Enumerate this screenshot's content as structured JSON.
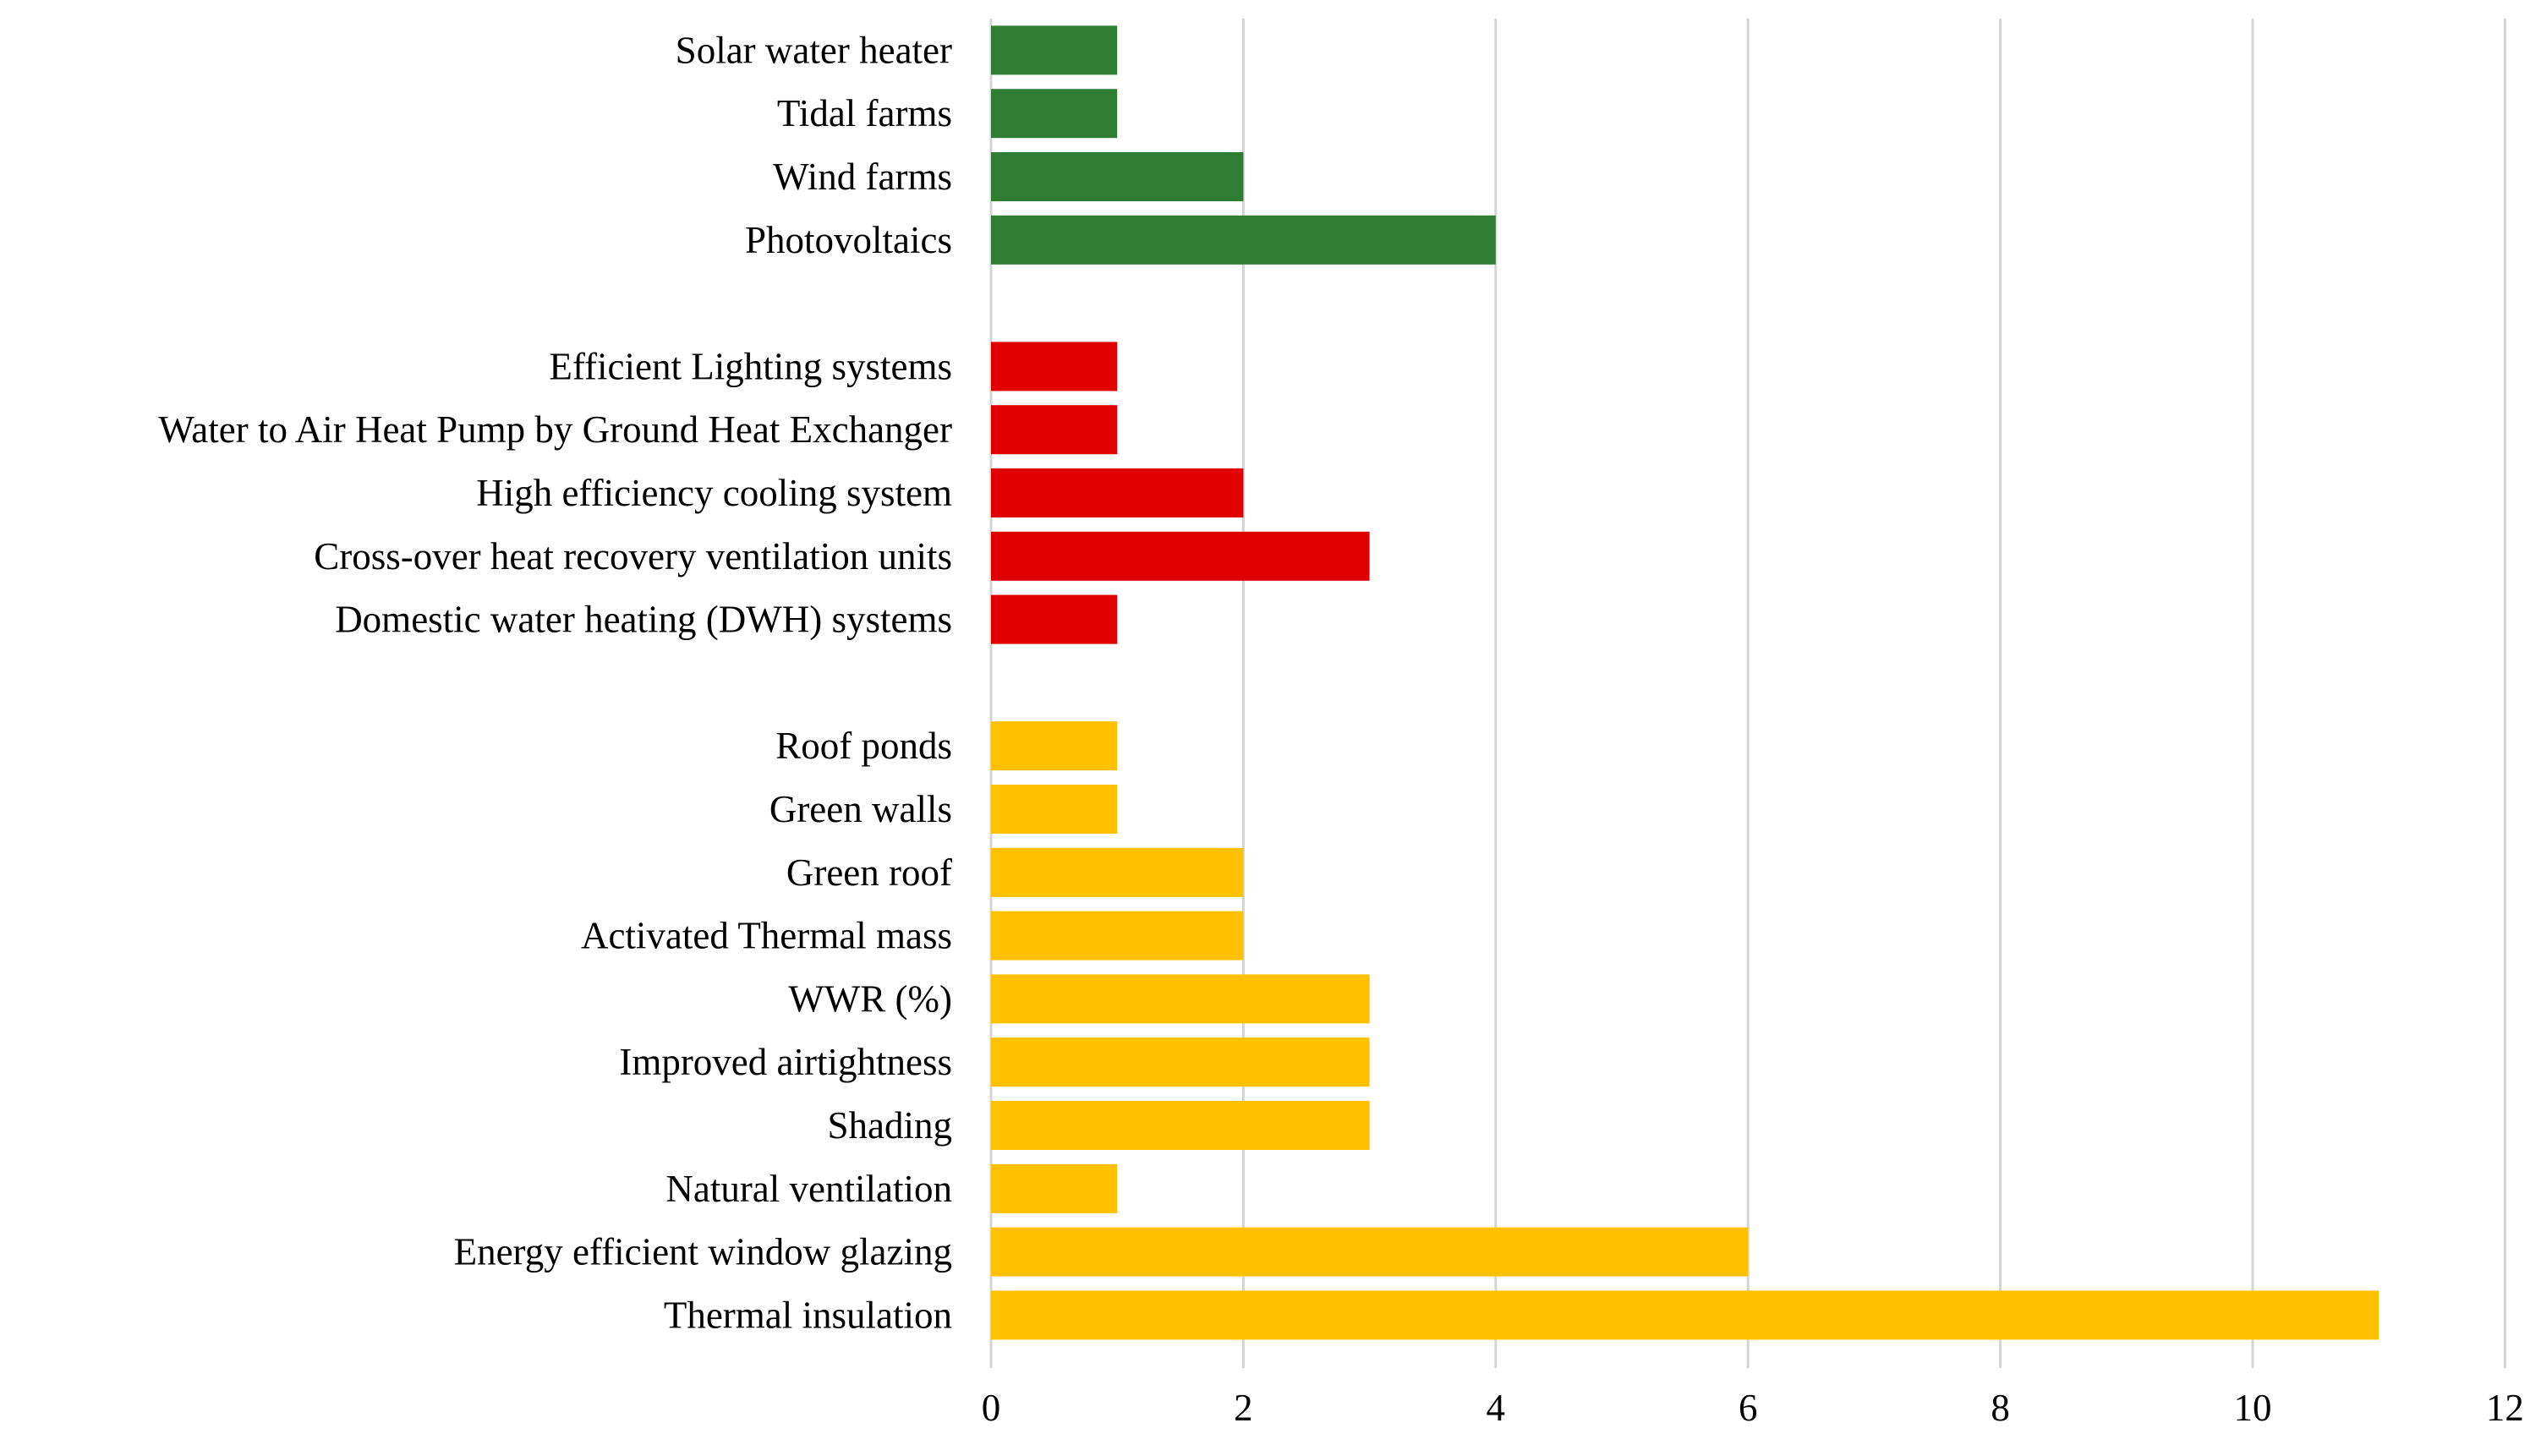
{
  "chart_data": {
    "type": "bar",
    "orientation": "horizontal",
    "title": "",
    "xlabel": "",
    "ylabel": "",
    "xlim": [
      0,
      12
    ],
    "x_ticks": [
      0,
      2,
      4,
      6,
      8,
      10,
      12
    ],
    "grid": "vertical",
    "legend": "none",
    "colors": {
      "renewable": "#2e7d32",
      "systems": "#e00000",
      "passive": "#ffc000"
    },
    "groups": [
      {
        "color_key": "renewable",
        "items": [
          {
            "label": "Solar water heater",
            "value": 1
          },
          {
            "label": "Tidal farms",
            "value": 1
          },
          {
            "label": "Wind farms",
            "value": 2
          },
          {
            "label": "Photovoltaics",
            "value": 4
          }
        ]
      },
      {
        "color_key": "systems",
        "items": [
          {
            "label": "Efficient Lighting systems",
            "value": 1
          },
          {
            "label": "Water to Air Heat Pump by Ground Heat Exchanger",
            "value": 1
          },
          {
            "label": "High efficiency cooling system",
            "value": 2
          },
          {
            "label": "Cross-over heat recovery ventilation units",
            "value": 3
          },
          {
            "label": "Domestic water heating (DWH) systems",
            "value": 1
          }
        ]
      },
      {
        "color_key": "passive",
        "items": [
          {
            "label": "Roof ponds",
            "value": 1
          },
          {
            "label": "Green walls",
            "value": 1
          },
          {
            "label": "Green roof",
            "value": 2
          },
          {
            "label": "Activated Thermal mass",
            "value": 2
          },
          {
            "label": "WWR (%)",
            "value": 3
          },
          {
            "label": "Improved airtightness",
            "value": 3
          },
          {
            "label": "Shading",
            "value": 3
          },
          {
            "label": "Natural ventilation",
            "value": 1
          },
          {
            "label": "Energy efficient window glazing",
            "value": 6
          },
          {
            "label": "Thermal insulation",
            "value": 11
          }
        ]
      }
    ]
  }
}
